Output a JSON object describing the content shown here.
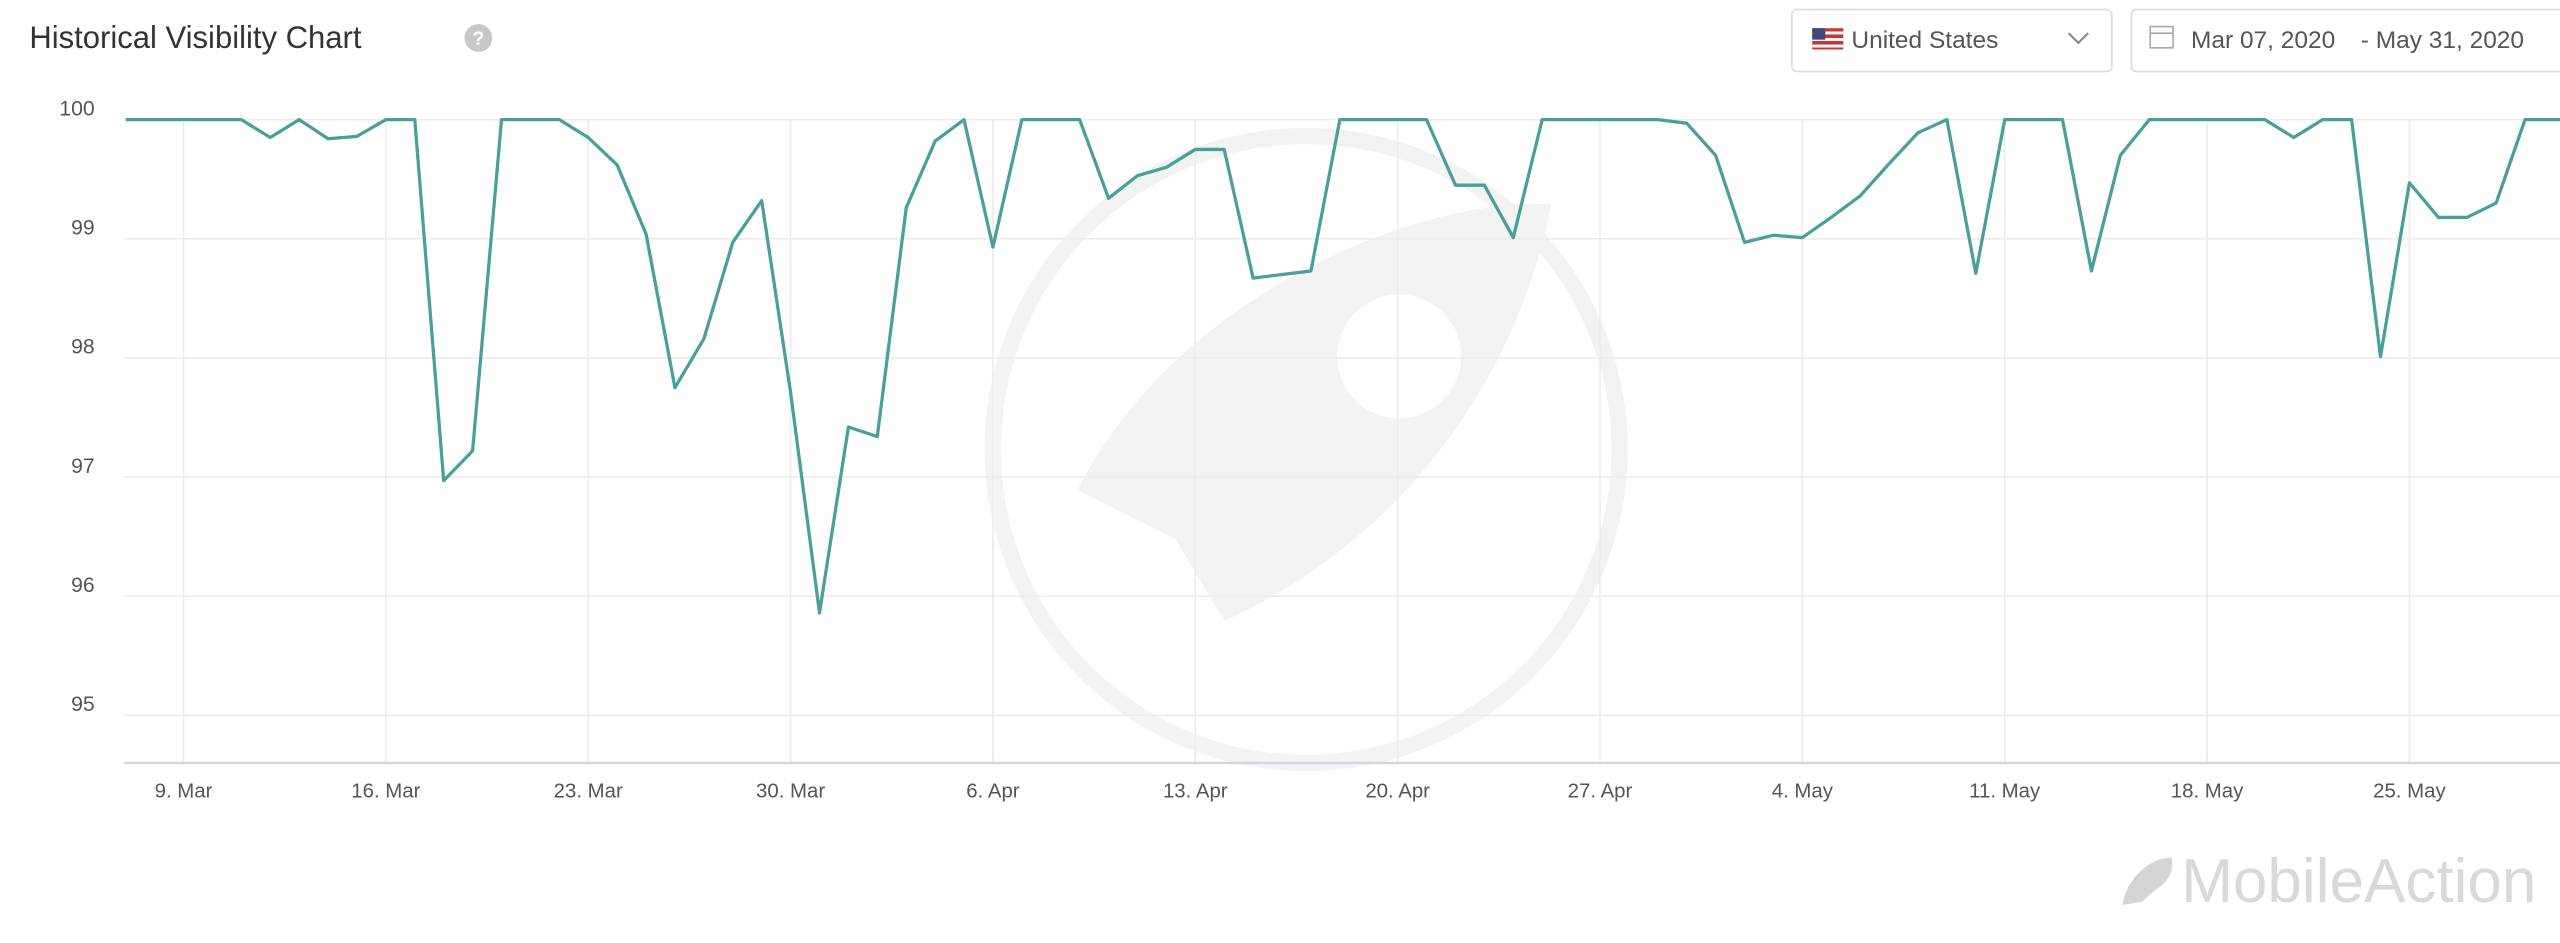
{
  "chart_data": {
    "type": "line",
    "title": "Historical Visibility Chart",
    "x": [
      "2020-03-07",
      "2020-03-08",
      "2020-03-09",
      "2020-03-10",
      "2020-03-11",
      "2020-03-12",
      "2020-03-13",
      "2020-03-14",
      "2020-03-15",
      "2020-03-16",
      "2020-03-17",
      "2020-03-18",
      "2020-03-19",
      "2020-03-20",
      "2020-03-21",
      "2020-03-22",
      "2020-03-23",
      "2020-03-24",
      "2020-03-25",
      "2020-03-26",
      "2020-03-27",
      "2020-03-28",
      "2020-03-29",
      "2020-03-30",
      "2020-03-31",
      "2020-04-01",
      "2020-04-02",
      "2020-04-03",
      "2020-04-04",
      "2020-04-05",
      "2020-04-06",
      "2020-04-07",
      "2020-04-08",
      "2020-04-09",
      "2020-04-10",
      "2020-04-11",
      "2020-04-12",
      "2020-04-13",
      "2020-04-14",
      "2020-04-15",
      "2020-04-16",
      "2020-04-17",
      "2020-04-18",
      "2020-04-19",
      "2020-04-20",
      "2020-04-21",
      "2020-04-22",
      "2020-04-23",
      "2020-04-24",
      "2020-04-25",
      "2020-04-26",
      "2020-04-27",
      "2020-04-28",
      "2020-04-29",
      "2020-04-30",
      "2020-05-01",
      "2020-05-02",
      "2020-05-03",
      "2020-05-04",
      "2020-05-05",
      "2020-05-06",
      "2020-05-07",
      "2020-05-08",
      "2020-05-09",
      "2020-05-10",
      "2020-05-11",
      "2020-05-12",
      "2020-05-13",
      "2020-05-14",
      "2020-05-15",
      "2020-05-16",
      "2020-05-17",
      "2020-05-18",
      "2020-05-19",
      "2020-05-20",
      "2020-05-21",
      "2020-05-22",
      "2020-05-23",
      "2020-05-24",
      "2020-05-25",
      "2020-05-26",
      "2020-05-27",
      "2020-05-28",
      "2020-05-29",
      "2020-05-30",
      "2020-05-31"
    ],
    "series": [
      {
        "color": "#4a9e9b",
        "values": [
          100,
          100,
          100,
          100,
          100,
          99.85,
          100,
          99.84,
          99.86,
          100,
          100,
          96.97,
          97.22,
          100,
          100,
          100,
          99.85,
          99.62,
          99.04,
          97.75,
          98.16,
          98.97,
          99.32,
          97.71,
          95.86,
          97.42,
          97.34,
          99.26,
          99.82,
          100,
          98.93,
          100,
          100,
          100,
          99.34,
          99.53,
          99.6,
          99.75,
          99.75,
          98.67,
          98.7,
          98.73,
          100,
          100,
          100,
          100,
          99.45,
          99.45,
          99.01,
          100,
          100,
          100,
          100,
          100,
          99.97,
          99.7,
          98.97,
          99.03,
          99.01,
          99.18,
          99.36,
          99.63,
          99.89,
          100,
          98.71,
          100,
          100,
          100,
          98.73,
          99.7,
          100,
          100,
          100,
          100,
          100,
          99.85,
          100,
          100,
          98.01,
          99.47,
          99.18,
          99.18,
          99.3,
          100,
          100,
          100
        ]
      }
    ],
    "xlim": [
      "2020-03-07",
      "2020-05-31"
    ],
    "xticks": [
      {
        "value": "2020-03-09",
        "label": "9. Mar"
      },
      {
        "value": "2020-03-16",
        "label": "16. Mar"
      },
      {
        "value": "2020-03-23",
        "label": "23. Mar"
      },
      {
        "value": "2020-03-30",
        "label": "30. Mar"
      },
      {
        "value": "2020-04-06",
        "label": "6. Apr"
      },
      {
        "value": "2020-04-13",
        "label": "13. Apr"
      },
      {
        "value": "2020-04-20",
        "label": "20. Apr"
      },
      {
        "value": "2020-04-27",
        "label": "27. Apr"
      },
      {
        "value": "2020-05-04",
        "label": "4. May"
      },
      {
        "value": "2020-05-11",
        "label": "11. May"
      },
      {
        "value": "2020-05-18",
        "label": "18. May"
      },
      {
        "value": "2020-05-25",
        "label": "25. May"
      }
    ],
    "ylim": [
      94.6,
      100
    ],
    "yticks": [
      95,
      96,
      97,
      98,
      99,
      100
    ],
    "grid": true
  },
  "controls": {
    "country": "United States",
    "date_from": "Mar 07, 2020",
    "date_to": "- May 31, 2020"
  },
  "brand": "MobileAction"
}
